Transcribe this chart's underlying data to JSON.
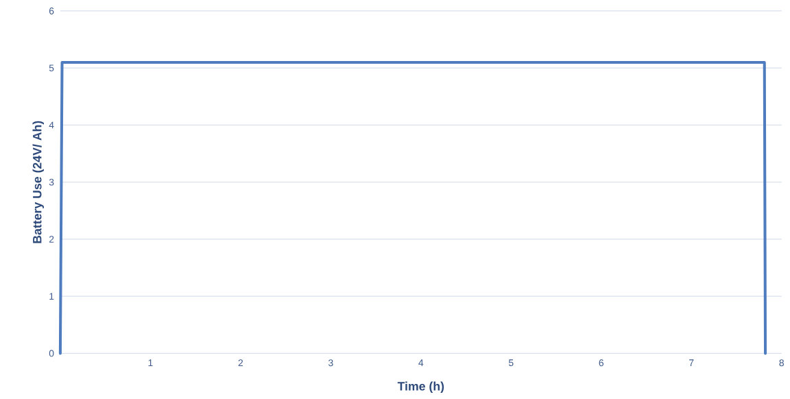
{
  "chart_data": {
    "type": "line",
    "xlabel": "Time (h)",
    "ylabel": "Battery Use (24V/ Ah)",
    "series": [
      {
        "color": "#4f7cbf",
        "x": [
          0,
          0.02,
          7.81,
          7.82
        ],
        "values": [
          0,
          5.1,
          5.1,
          0
        ]
      }
    ],
    "xlim": [
      0,
      8
    ],
    "xticks": [
      1,
      2,
      3,
      4,
      5,
      6,
      7,
      8
    ],
    "ylim": [
      0,
      6
    ],
    "yticks": [
      0,
      1,
      2,
      3,
      4,
      5,
      6
    ],
    "grid": "y",
    "marker": "none",
    "line_style": "solid"
  }
}
